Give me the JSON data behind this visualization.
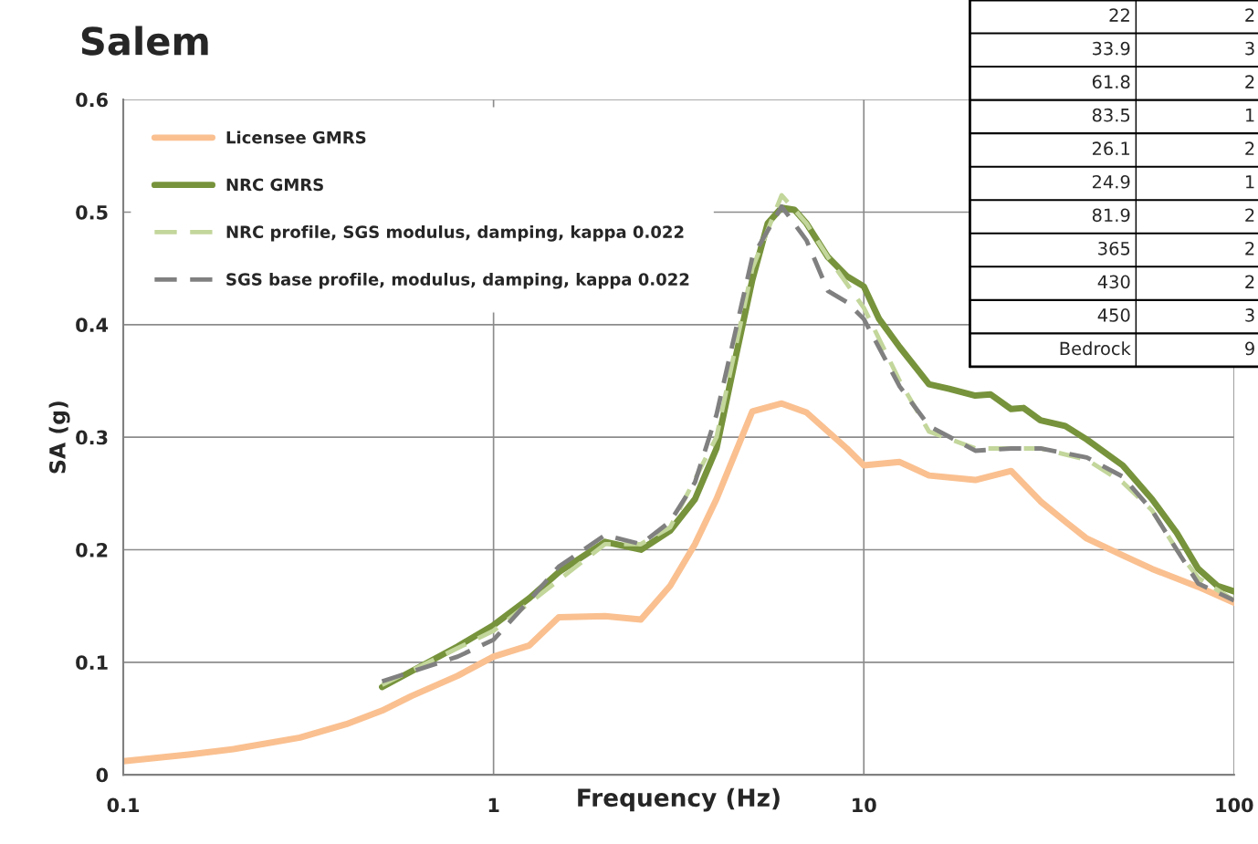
{
  "chart_data": {
    "type": "line",
    "title": "Salem",
    "xlabel": "Frequency (Hz)",
    "ylabel": "SA (g)",
    "log": "x",
    "xlim": [
      0.1,
      100
    ],
    "xticks": [
      0.1,
      1,
      10,
      100
    ],
    "ylim": [
      0,
      0.6
    ],
    "yticks": [
      {
        "value": 0,
        "label": "0"
      },
      0.1,
      0.2,
      0.3,
      0.4,
      0.5,
      0.6
    ],
    "grid": true,
    "legend": "top left",
    "marker": "none",
    "series": [
      {
        "name": "Licensee GMRS",
        "color": "#fac090",
        "line_style": "solid",
        "x": [
          0.1,
          0.15,
          0.2,
          0.3,
          0.4,
          0.5,
          0.6,
          0.8,
          1,
          1.25,
          1.5,
          2,
          2.5,
          3,
          3.5,
          4,
          5,
          6,
          7,
          9,
          10,
          12.5,
          15,
          20,
          25,
          30,
          35,
          40,
          50,
          60,
          80,
          100
        ],
        "values": [
          0.012,
          0.018,
          0.023,
          0.033,
          0.045,
          0.057,
          0.07,
          0.088,
          0.105,
          0.115,
          0.14,
          0.141,
          0.138,
          0.168,
          0.205,
          0.245,
          0.323,
          0.33,
          0.322,
          0.29,
          0.275,
          0.278,
          0.266,
          0.262,
          0.27,
          0.243,
          0.225,
          0.21,
          0.195,
          0.183,
          0.167,
          0.153
        ]
      },
      {
        "name": "NRC GMRS",
        "color": "#77933c",
        "line_style": "solid",
        "x": [
          0.5,
          0.6,
          0.8,
          1,
          1.25,
          1.5,
          2,
          2.5,
          3,
          3.5,
          4,
          4.5,
          5,
          5.5,
          6,
          6.5,
          7,
          8,
          9,
          10,
          11,
          12.5,
          15,
          17,
          20,
          22,
          25,
          27,
          30,
          35,
          40,
          50,
          60,
          70,
          80,
          90,
          100
        ],
        "values": [
          0.078,
          0.092,
          0.114,
          0.133,
          0.157,
          0.18,
          0.207,
          0.2,
          0.217,
          0.245,
          0.29,
          0.37,
          0.44,
          0.49,
          0.504,
          0.502,
          0.49,
          0.46,
          0.443,
          0.434,
          0.405,
          0.38,
          0.347,
          0.343,
          0.337,
          0.338,
          0.325,
          0.326,
          0.315,
          0.31,
          0.298,
          0.275,
          0.245,
          0.215,
          0.183,
          0.168,
          0.163
        ]
      },
      {
        "name": "NRC profile, SGS modulus, damping, kappa 0.022",
        "color": "#c3d69b",
        "line_style": "dashed",
        "x": [
          0.5,
          1,
          2,
          2.5,
          3,
          4,
          5,
          6,
          7,
          8,
          10,
          12.5,
          15,
          20,
          25,
          30,
          40,
          50,
          60,
          70,
          80,
          100
        ],
        "values": [
          0.08,
          0.128,
          0.205,
          0.205,
          0.22,
          0.3,
          0.45,
          0.515,
          0.49,
          0.46,
          0.415,
          0.35,
          0.305,
          0.29,
          0.29,
          0.29,
          0.28,
          0.26,
          0.235,
          0.2,
          0.175,
          0.155
        ]
      },
      {
        "name": "SGS base profile, modulus, damping, kappa 0.022",
        "color": "#808080",
        "line_style": "dashed",
        "x": [
          0.5,
          0.8,
          1,
          1.25,
          1.5,
          2,
          2.5,
          3,
          3.5,
          4,
          5,
          6,
          7,
          8,
          9,
          10,
          12.5,
          15,
          20,
          25,
          30,
          40,
          50,
          60,
          70,
          80,
          100
        ],
        "values": [
          0.083,
          0.105,
          0.12,
          0.155,
          0.185,
          0.213,
          0.205,
          0.225,
          0.26,
          0.32,
          0.46,
          0.505,
          0.475,
          0.43,
          0.42,
          0.405,
          0.345,
          0.31,
          0.288,
          0.29,
          0.29,
          0.282,
          0.265,
          0.235,
          0.2,
          0.17,
          0.155
        ]
      }
    ],
    "annotations": [
      "22",
      "2",
      "33.9",
      "3",
      "61.8",
      "2",
      "83.5",
      "1",
      "26.1",
      "2",
      "24.9",
      "1",
      "81.9",
      "2",
      "365",
      "2",
      "430",
      "2",
      "450",
      "3",
      "Bedrock",
      "9"
    ]
  }
}
